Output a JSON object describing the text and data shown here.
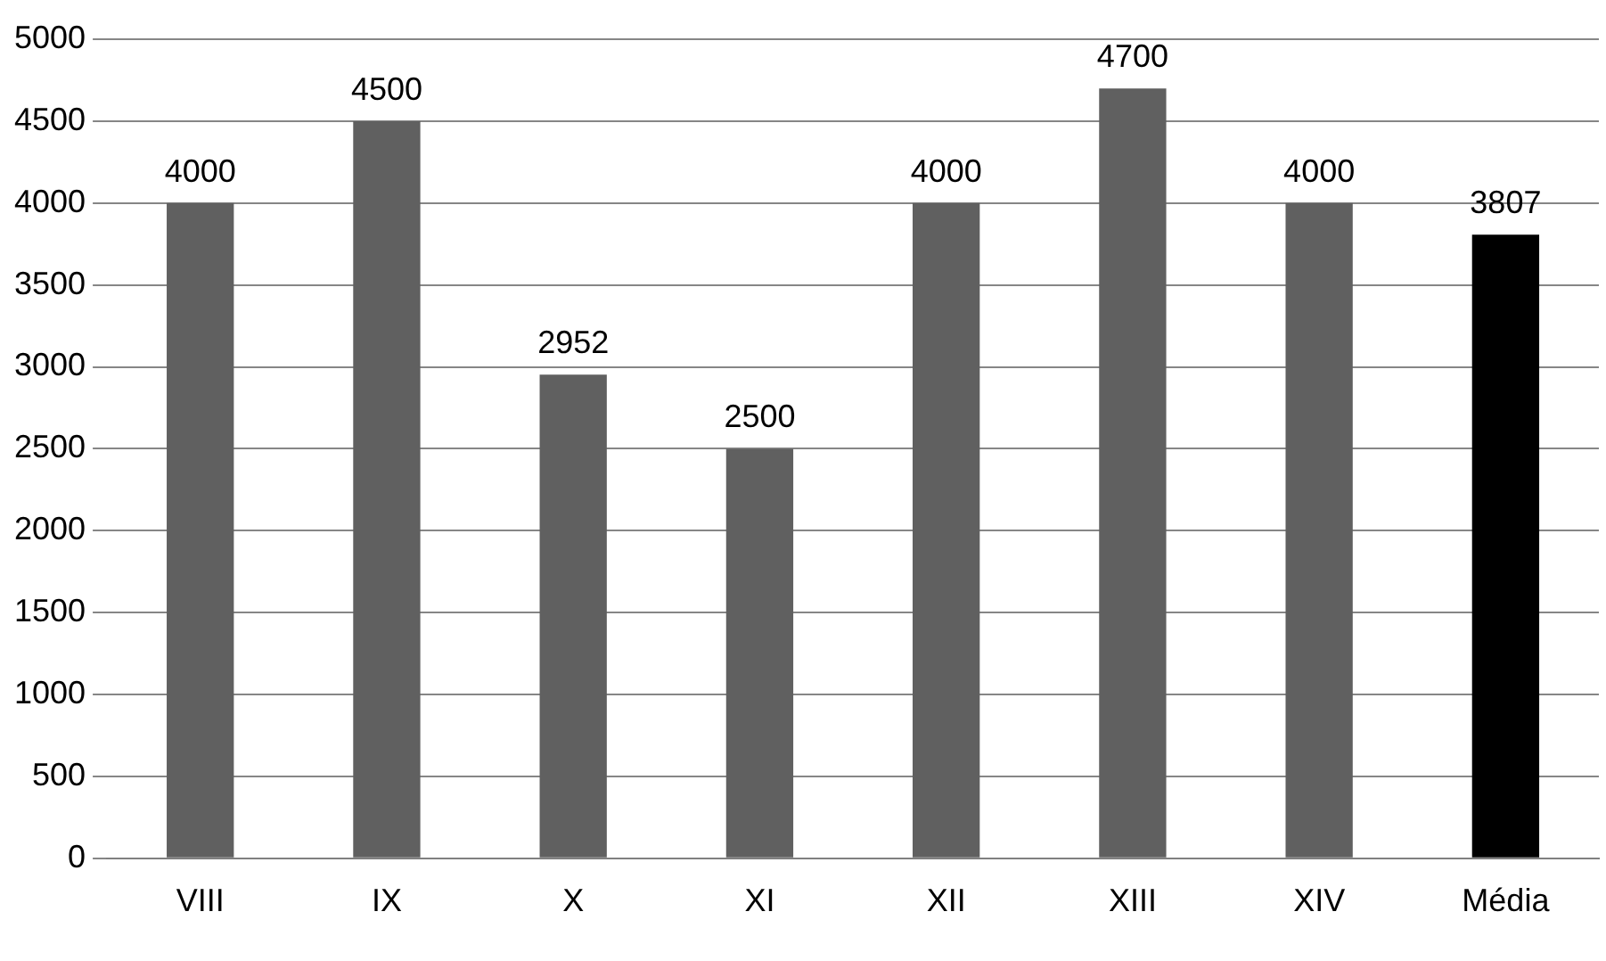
{
  "chart_data": {
    "type": "bar",
    "categories": [
      "VIII",
      "IX",
      "X",
      "XI",
      "XII",
      "XIII",
      "XIV",
      "Média"
    ],
    "values": [
      4000,
      4500,
      2952,
      2500,
      4000,
      4700,
      4000,
      3807
    ],
    "colors": [
      "#606060",
      "#606060",
      "#606060",
      "#606060",
      "#606060",
      "#606060",
      "#606060",
      "#000000"
    ],
    "ylim": [
      0,
      5000
    ],
    "yticks": [
      0,
      500,
      1000,
      1500,
      2000,
      2500,
      3000,
      3500,
      4000,
      4500,
      5000
    ],
    "grid": "y",
    "data_labels": true
  }
}
